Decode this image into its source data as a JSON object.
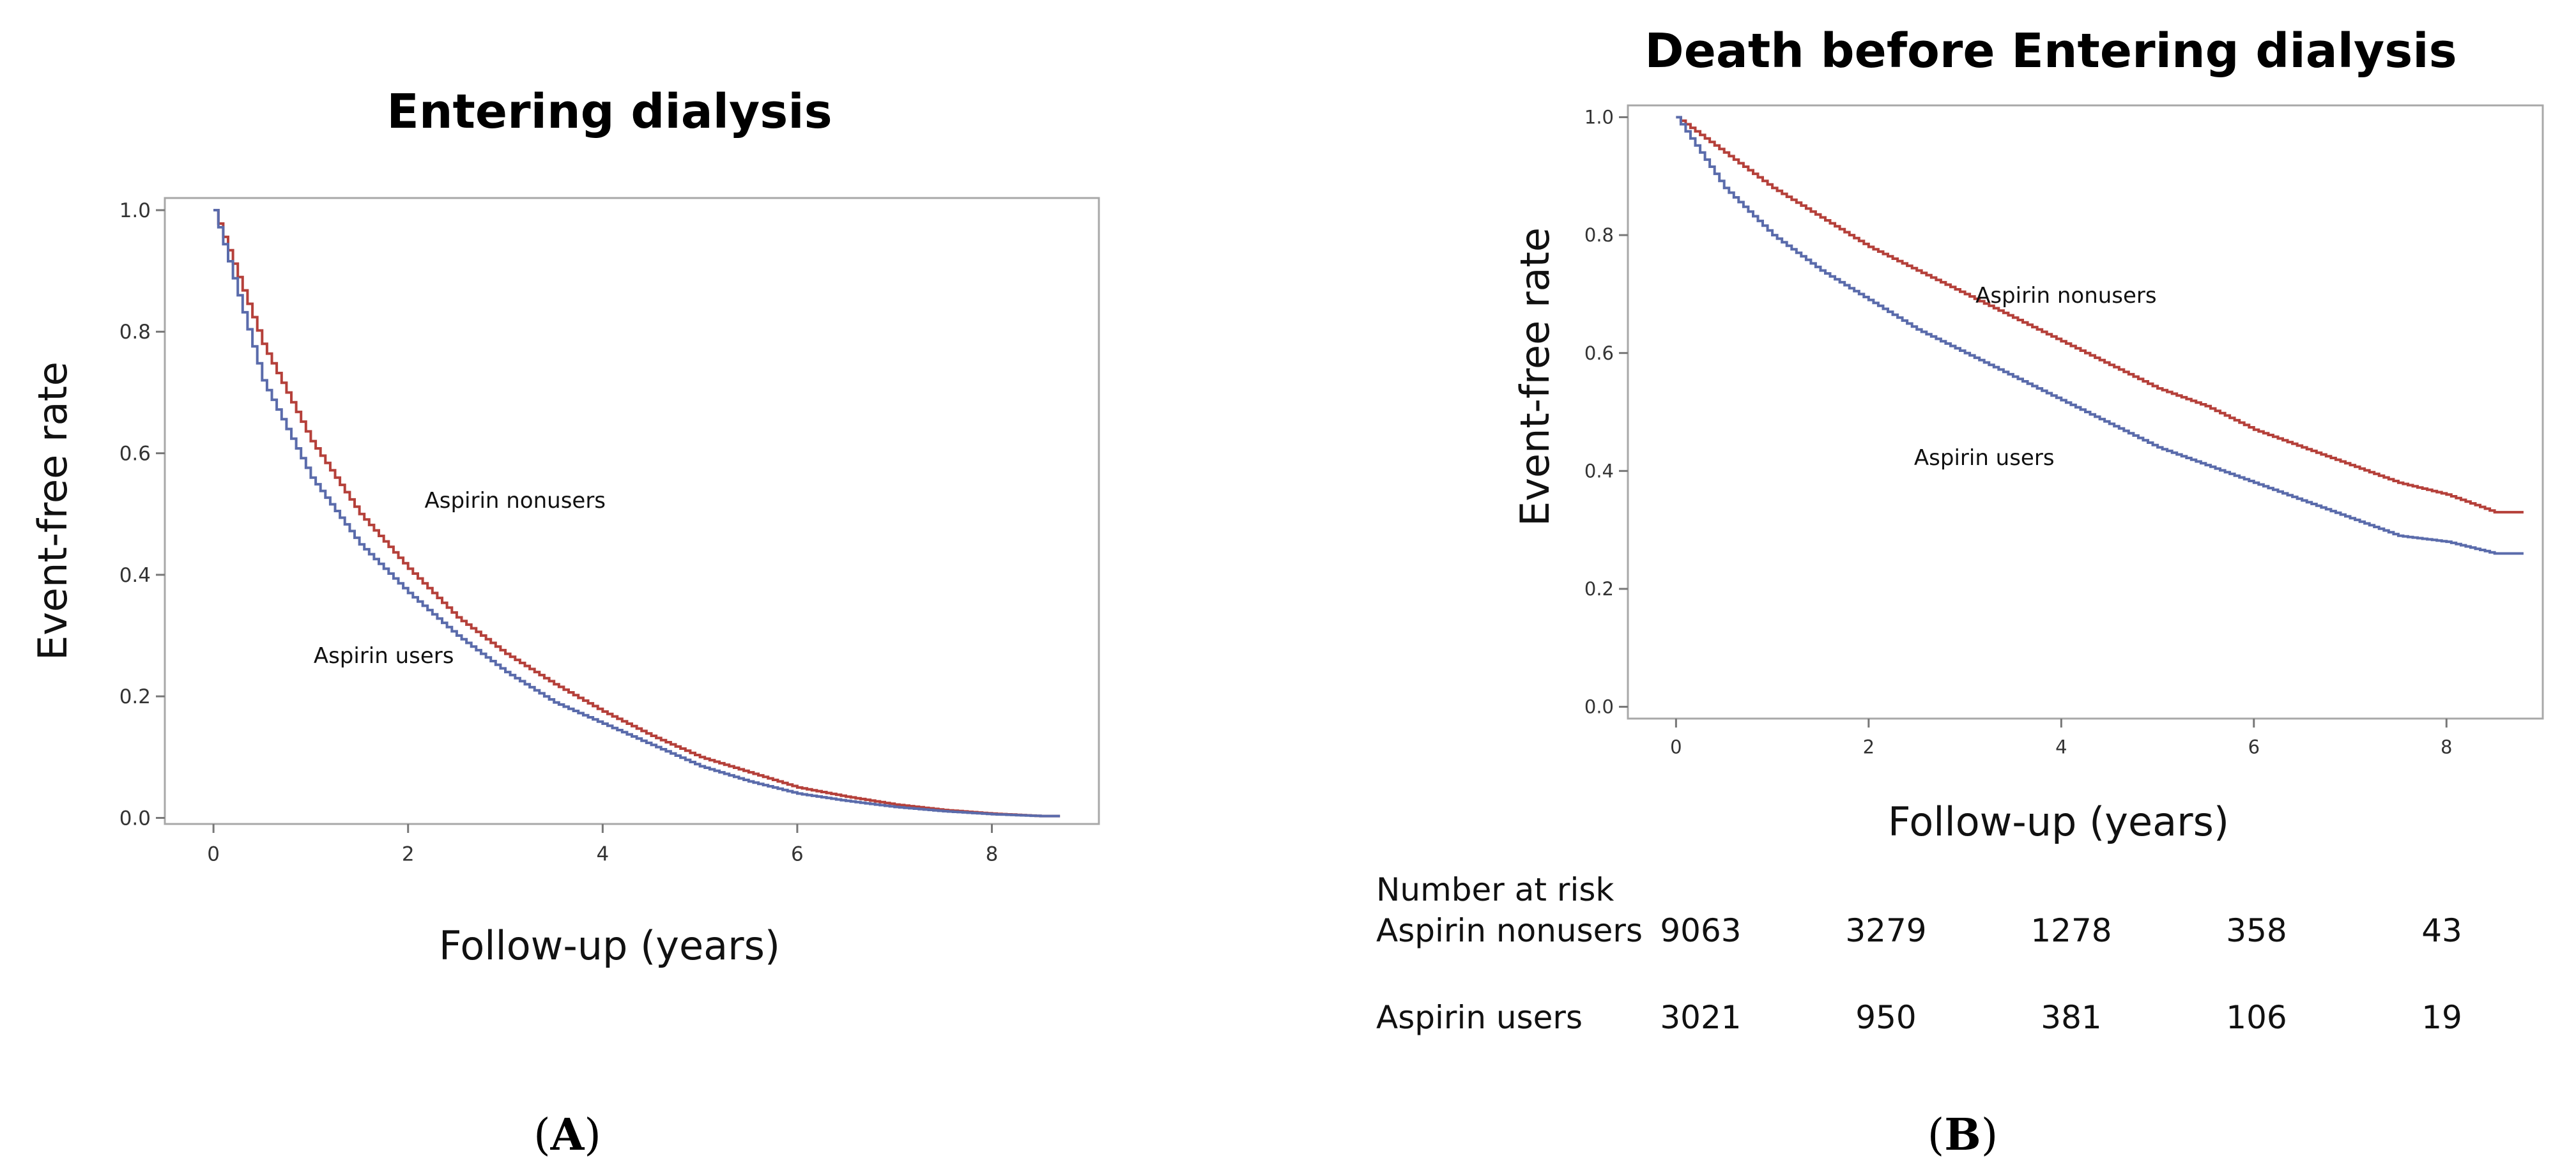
{
  "chart_data": [
    {
      "type": "line",
      "panel_label": "A",
      "title": "Entering dialysis",
      "xlabel": "Follow-up (years)",
      "ylabel": "Event-free rate",
      "xlim": [
        -0.5,
        9.1
      ],
      "ylim": [
        -0.01,
        1.02
      ],
      "xticks": [
        0,
        2,
        4,
        6,
        8
      ],
      "yticks": [
        0.0,
        0.2,
        0.4,
        0.6,
        0.8,
        1.0
      ],
      "xtick_labels": [
        "0",
        "2",
        "4",
        "6",
        "8"
      ],
      "ytick_labels": [
        "0.0",
        "0.2",
        "0.4",
        "0.6",
        "0.8",
        "1.0"
      ],
      "series": [
        {
          "name": "Aspirin nonusers",
          "color": "#b5403a",
          "x": [
            0,
            0.5,
            1,
            1.5,
            2,
            2.5,
            3,
            3.5,
            4,
            4.5,
            5,
            5.5,
            6,
            6.5,
            7,
            7.5,
            8,
            8.5,
            8.7
          ],
          "y": [
            1.0,
            0.78,
            0.62,
            0.5,
            0.41,
            0.33,
            0.27,
            0.22,
            0.175,
            0.135,
            0.1,
            0.075,
            0.05,
            0.035,
            0.022,
            0.013,
            0.007,
            0.003,
            0.003
          ]
        },
        {
          "name": "Aspirin users",
          "color": "#5a6bab",
          "x": [
            0,
            0.5,
            1,
            1.5,
            2,
            2.5,
            3,
            3.5,
            4,
            4.5,
            5,
            5.5,
            6,
            6.5,
            7,
            7.5,
            8,
            8.5,
            8.7
          ],
          "y": [
            1.0,
            0.72,
            0.56,
            0.45,
            0.37,
            0.3,
            0.24,
            0.19,
            0.155,
            0.12,
            0.085,
            0.06,
            0.04,
            0.028,
            0.018,
            0.011,
            0.006,
            0.003,
            0.003
          ]
        }
      ],
      "annotations": [
        {
          "text": "Aspirin nonusers",
          "x": 3.1,
          "y": 0.51
        },
        {
          "text": "Aspirin users",
          "x": 1.75,
          "y": 0.255
        }
      ]
    },
    {
      "type": "line",
      "panel_label": "B",
      "title": "Death before Entering dialysis",
      "xlabel": "Follow-up (years)",
      "ylabel": "Event-free rate",
      "xlim": [
        -0.5,
        9.0
      ],
      "ylim": [
        -0.02,
        1.02
      ],
      "xticks": [
        0,
        2,
        4,
        6,
        8
      ],
      "yticks": [
        0.0,
        0.2,
        0.4,
        0.6,
        0.8,
        1.0
      ],
      "xtick_labels": [
        "0",
        "2",
        "4",
        "6",
        "8"
      ],
      "ytick_labels": [
        "0.0",
        "0.2",
        "0.4",
        "0.6",
        "0.8",
        "1.0"
      ],
      "series": [
        {
          "name": "Aspirin nonusers",
          "color": "#b5403a",
          "x": [
            0,
            0.5,
            1,
            1.5,
            2,
            2.5,
            3,
            3.5,
            4,
            4.5,
            5,
            5.5,
            6,
            6.5,
            7,
            7.5,
            8,
            8.5,
            8.8
          ],
          "y": [
            1.0,
            0.94,
            0.88,
            0.83,
            0.78,
            0.74,
            0.7,
            0.66,
            0.62,
            0.58,
            0.54,
            0.51,
            0.47,
            0.44,
            0.41,
            0.38,
            0.36,
            0.33,
            0.33
          ]
        },
        {
          "name": "Aspirin users",
          "color": "#5a6bab",
          "x": [
            0,
            0.5,
            1,
            1.5,
            2,
            2.5,
            3,
            3.5,
            4,
            4.5,
            5,
            5.5,
            6,
            6.5,
            7,
            7.5,
            8,
            8.5,
            8.8
          ],
          "y": [
            1.0,
            0.88,
            0.8,
            0.74,
            0.69,
            0.64,
            0.6,
            0.56,
            0.52,
            0.48,
            0.44,
            0.41,
            0.38,
            0.35,
            0.32,
            0.29,
            0.28,
            0.26,
            0.26
          ]
        }
      ],
      "annotations": [
        {
          "text": "Aspirin nonusers",
          "x": 4.05,
          "y": 0.685
        },
        {
          "text": "Aspirin users",
          "x": 3.2,
          "y": 0.41
        }
      ]
    }
  ],
  "risk_table": {
    "header": "Number at risk",
    "rows": [
      {
        "label": "Aspirin nonusers",
        "values": [
          "9063",
          "3279",
          "1278",
          "358",
          "43"
        ]
      },
      {
        "label": "Aspirin users",
        "values": [
          "3021",
          "950",
          "381",
          "106",
          "19"
        ]
      }
    ]
  },
  "panel_labels": {
    "a": {
      "open": "(",
      "letter": "A",
      "close": ")"
    },
    "b": {
      "open": "(",
      "letter": "B",
      "close": ")"
    }
  }
}
